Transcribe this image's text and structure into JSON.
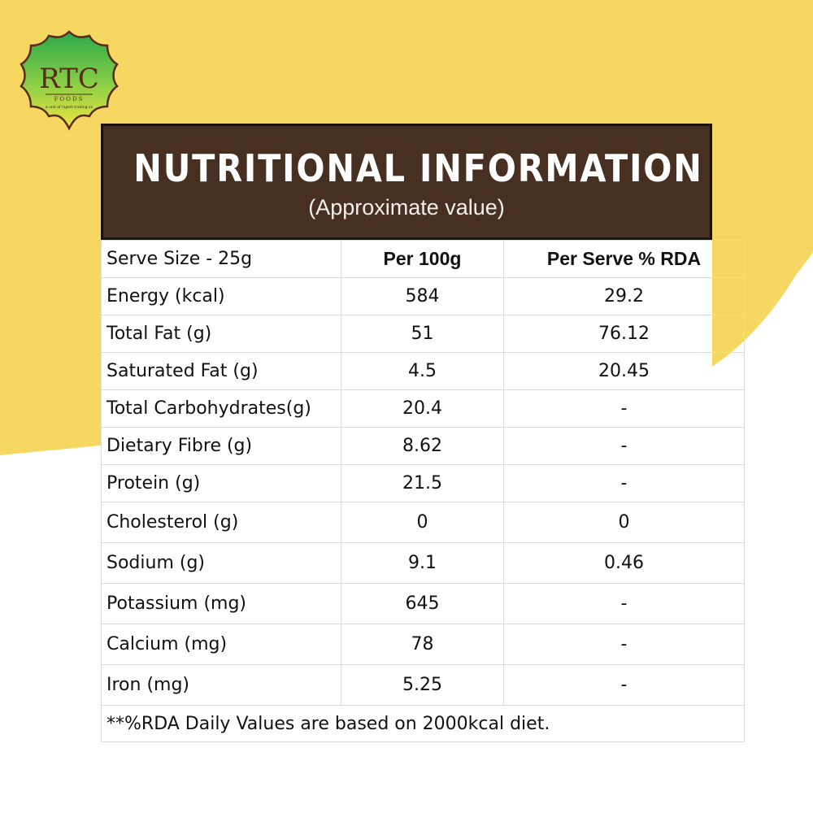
{
  "brand": {
    "logo_text": "RTC",
    "logo_sub": "FOODS",
    "logo_tag": "a unit of rajesh trading co"
  },
  "colors": {
    "background_accent": "#f5d761",
    "header_bg": "#472f21",
    "header_text": "#ffffff",
    "logo_gradient_top": "#2aa84a",
    "logo_gradient_bottom": "#f0e640"
  },
  "header": {
    "title": "NUTRITIONAL INFORMATION",
    "subtitle": "(Approximate value)"
  },
  "table": {
    "columns": [
      "Serve Size - 25g",
      "Per 100g",
      "Per Serve % RDA"
    ],
    "rows": [
      [
        "Energy (kcal)",
        "584",
        "29.2"
      ],
      [
        "Total Fat (g)",
        "51",
        "76.12"
      ],
      [
        "Saturated Fat (g)",
        "4.5",
        "20.45"
      ],
      [
        "Total Carbohydrates(g)",
        "20.4",
        "-"
      ],
      [
        "Dietary Fibre (g)",
        "8.62",
        "-"
      ],
      [
        "Protein (g)",
        "21.5",
        "-"
      ],
      [
        "Cholesterol (g)",
        "0",
        "0"
      ],
      [
        "Sodium (g)",
        "9.1",
        "0.46"
      ],
      [
        "Potassium (mg)",
        "645",
        "-"
      ],
      [
        "Calcium (mg)",
        "78",
        "-"
      ],
      [
        "Iron (mg)",
        "5.25",
        "-"
      ]
    ],
    "footnote": "**%RDA Daily Values are based on 2000kcal diet."
  }
}
